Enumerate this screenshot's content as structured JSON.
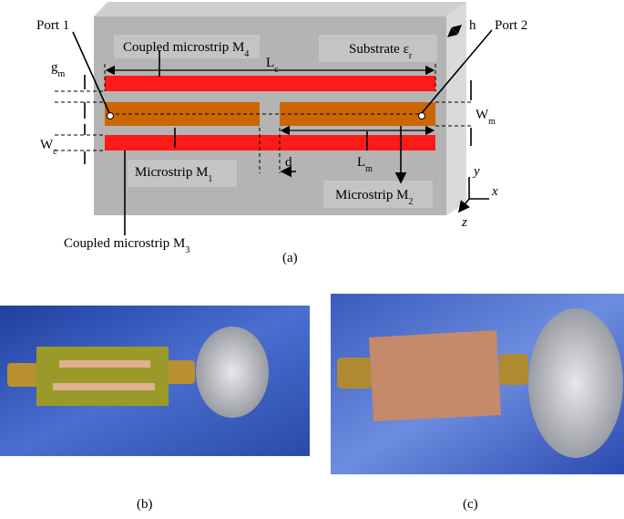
{
  "labels": {
    "port_1": "Port 1",
    "port_2": "Port 2",
    "coupled_m4": {
      "base": "Coupled microstrip M",
      "sub": "4"
    },
    "substrate": {
      "base": "Substrate ε",
      "sub": "r"
    },
    "h": "h",
    "lc": {
      "base": "L",
      "sub": "c"
    },
    "gm": {
      "base": "g",
      "sub": "m"
    },
    "wm": {
      "base": "W",
      "sub": "m"
    },
    "wc": {
      "base": "W",
      "sub": "c"
    },
    "microstrip_m1": {
      "base": "Microstrip M",
      "sub": "1"
    },
    "d": "d",
    "lm": {
      "base": "L",
      "sub": "m"
    },
    "microstrip_m2": {
      "base": "Microstrip M",
      "sub": "2"
    },
    "axis_y": "y",
    "axis_x": "x",
    "axis_z": "z",
    "coupled_m3": {
      "base": "Coupled microstrip M",
      "sub": "3"
    }
  },
  "captions": {
    "a": "(a)",
    "b": "(b)",
    "c": "(c)"
  }
}
